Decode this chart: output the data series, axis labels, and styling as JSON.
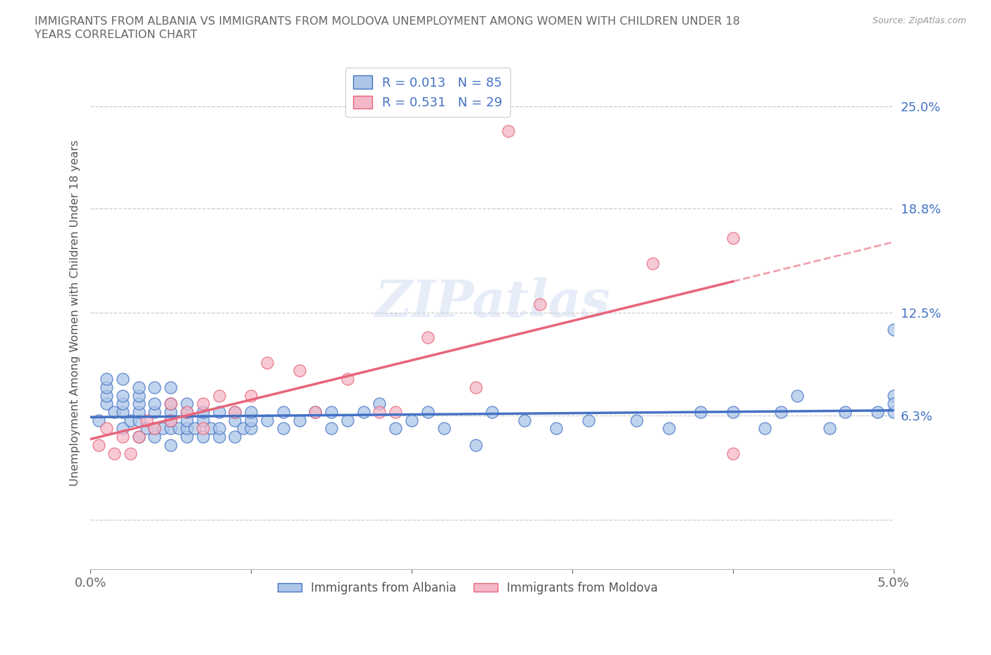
{
  "title_line1": "IMMIGRANTS FROM ALBANIA VS IMMIGRANTS FROM MOLDOVA UNEMPLOYMENT AMONG WOMEN WITH CHILDREN UNDER 18",
  "title_line2": "YEARS CORRELATION CHART",
  "source": "Source: ZipAtlas.com",
  "ylabel": "Unemployment Among Women with Children Under 18 years",
  "xlim": [
    0.0,
    0.05
  ],
  "ylim": [
    -0.03,
    0.28
  ],
  "yticks": [
    0.0,
    0.063,
    0.125,
    0.188,
    0.25
  ],
  "ytick_labels": [
    "",
    "6.3%",
    "12.5%",
    "18.8%",
    "25.0%"
  ],
  "xticks": [
    0.0,
    0.01,
    0.02,
    0.03,
    0.04,
    0.05
  ],
  "xtick_labels": [
    "0.0%",
    "",
    "",
    "",
    "",
    "5.0%"
  ],
  "albania_color": "#adc6e8",
  "albania_edge_color": "#4472c4",
  "moldova_color": "#f4b8c8",
  "moldova_edge_color": "#e8647a",
  "albania_line_color": "#4472c4",
  "moldova_line_color": "#e8647a",
  "R_albania": 0.013,
  "N_albania": 85,
  "R_moldova": 0.531,
  "N_moldova": 29,
  "albania_x": [
    0.0005,
    0.001,
    0.001,
    0.001,
    0.001,
    0.0015,
    0.002,
    0.002,
    0.002,
    0.002,
    0.002,
    0.0025,
    0.003,
    0.003,
    0.003,
    0.003,
    0.003,
    0.003,
    0.0035,
    0.004,
    0.004,
    0.004,
    0.004,
    0.004,
    0.0045,
    0.005,
    0.005,
    0.005,
    0.005,
    0.005,
    0.005,
    0.0055,
    0.006,
    0.006,
    0.006,
    0.006,
    0.006,
    0.0065,
    0.007,
    0.007,
    0.007,
    0.0075,
    0.008,
    0.008,
    0.008,
    0.009,
    0.009,
    0.009,
    0.0095,
    0.01,
    0.01,
    0.01,
    0.011,
    0.012,
    0.012,
    0.013,
    0.014,
    0.015,
    0.015,
    0.016,
    0.017,
    0.018,
    0.019,
    0.02,
    0.021,
    0.022,
    0.024,
    0.025,
    0.027,
    0.029,
    0.031,
    0.034,
    0.036,
    0.038,
    0.04,
    0.042,
    0.043,
    0.044,
    0.046,
    0.047,
    0.049,
    0.05,
    0.05,
    0.05,
    0.05
  ],
  "albania_y": [
    0.06,
    0.07,
    0.075,
    0.08,
    0.085,
    0.065,
    0.055,
    0.065,
    0.07,
    0.075,
    0.085,
    0.06,
    0.05,
    0.06,
    0.065,
    0.07,
    0.075,
    0.08,
    0.055,
    0.05,
    0.055,
    0.065,
    0.07,
    0.08,
    0.055,
    0.045,
    0.055,
    0.06,
    0.065,
    0.07,
    0.08,
    0.055,
    0.05,
    0.055,
    0.06,
    0.065,
    0.07,
    0.055,
    0.05,
    0.06,
    0.065,
    0.055,
    0.05,
    0.055,
    0.065,
    0.05,
    0.06,
    0.065,
    0.055,
    0.055,
    0.06,
    0.065,
    0.06,
    0.055,
    0.065,
    0.06,
    0.065,
    0.055,
    0.065,
    0.06,
    0.065,
    0.07,
    0.055,
    0.06,
    0.065,
    0.055,
    0.045,
    0.065,
    0.06,
    0.055,
    0.06,
    0.06,
    0.055,
    0.065,
    0.065,
    0.055,
    0.065,
    0.075,
    0.055,
    0.065,
    0.065,
    0.075,
    0.065,
    0.07,
    0.115
  ],
  "moldova_x": [
    0.0005,
    0.001,
    0.0015,
    0.002,
    0.0025,
    0.003,
    0.0035,
    0.004,
    0.005,
    0.005,
    0.006,
    0.007,
    0.007,
    0.008,
    0.009,
    0.01,
    0.011,
    0.013,
    0.014,
    0.016,
    0.018,
    0.019,
    0.021,
    0.024,
    0.026,
    0.028,
    0.035,
    0.04,
    0.04
  ],
  "moldova_y": [
    0.045,
    0.055,
    0.04,
    0.05,
    0.04,
    0.05,
    0.06,
    0.055,
    0.06,
    0.07,
    0.065,
    0.055,
    0.07,
    0.075,
    0.065,
    0.075,
    0.095,
    0.09,
    0.065,
    0.085,
    0.065,
    0.065,
    0.11,
    0.08,
    0.235,
    0.13,
    0.155,
    0.17,
    0.04
  ],
  "watermark_text": "ZIPatlas",
  "background_color": "#ffffff",
  "grid_color": "#cccccc"
}
